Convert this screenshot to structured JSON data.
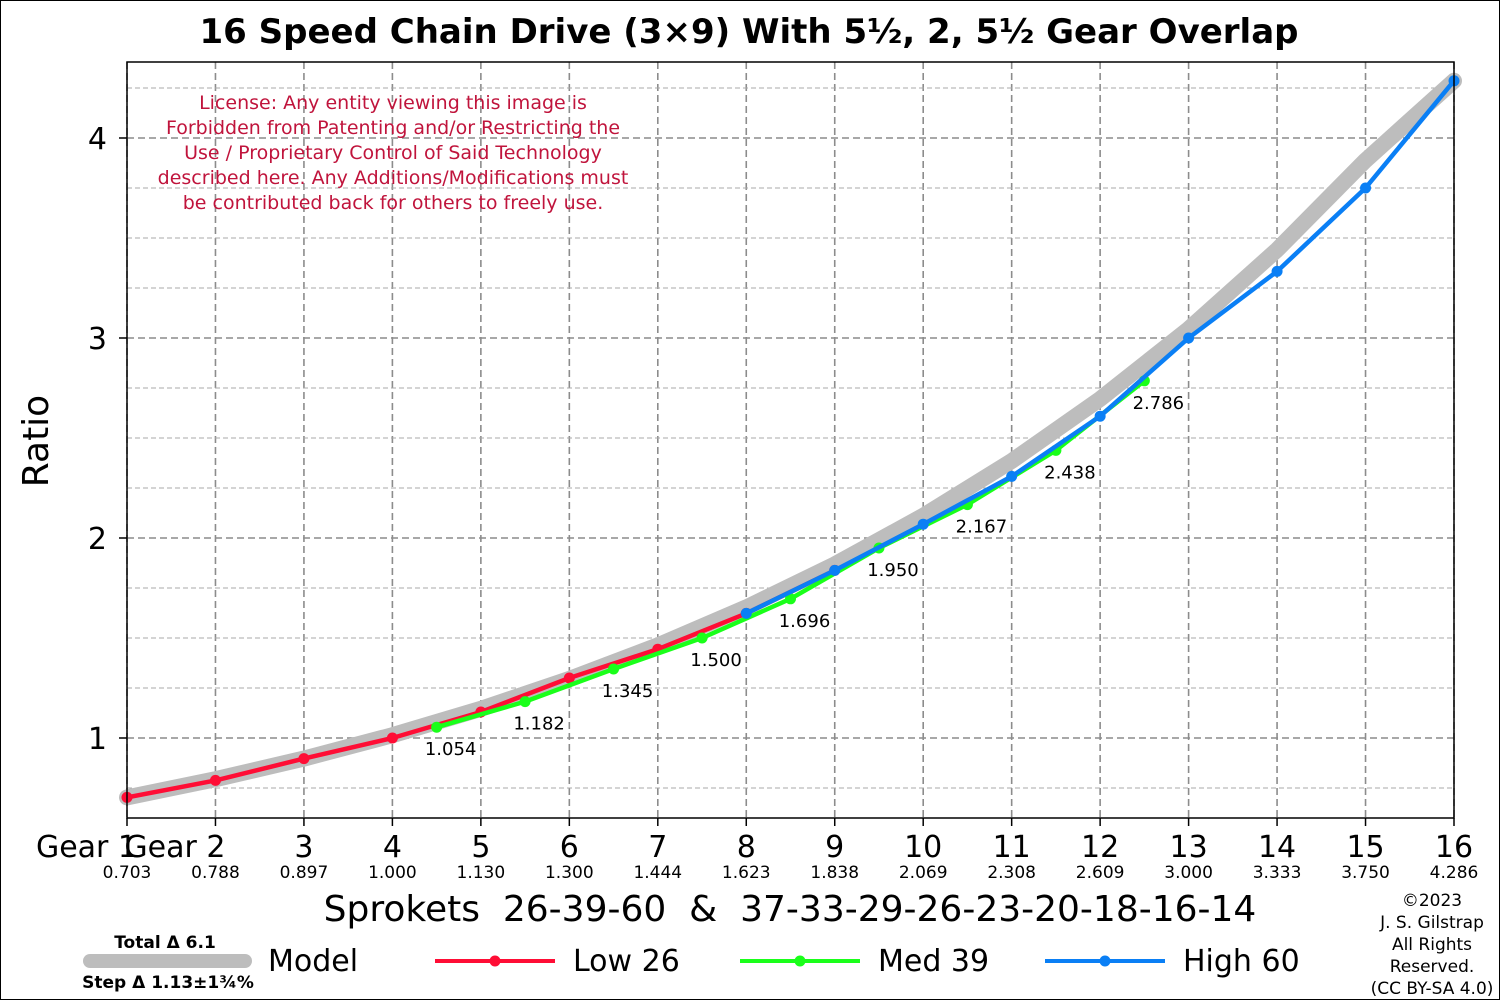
{
  "license_lines": [
    "License: Any entity viewing this image is",
    "Forbidden from Patenting and/or Restricting the",
    "Use / Proprietary Control of Said Technology",
    "described here. Any Additions/Modifications must",
    "be contributed back for others to freely use."
  ],
  "copyright_lines": [
    "©2023",
    "J. S. Gilstrap",
    "All Rights",
    "Reserved.",
    "(CC BY-SA 4.0)"
  ],
  "model_notes": {
    "total": "Total Δ 6.1",
    "step": "Step Δ 1.13±1¾%"
  },
  "colors": {
    "model": "#bdbdbd",
    "low": "#ff0d35",
    "med": "#1aff1a",
    "high": "#0a7ff5",
    "license": "#c0143c",
    "grid": "#8c8c8c"
  },
  "chart_data": {
    "type": "line",
    "title": "16 Speed Chain Drive (3×9) With 5½, 2, 5½ Gear Overlap",
    "xlabel": "Sprokets  26-39-60  &  37-33-29-26-23-20-18-16-14",
    "ylabel": "Ratio",
    "xlim": [
      1,
      16
    ],
    "ylim": [
      0.6,
      4.38
    ],
    "x_ticks": [
      1,
      2,
      3,
      4,
      5,
      6,
      7,
      8,
      9,
      10,
      11,
      12,
      13,
      14,
      15,
      16
    ],
    "x_tick_labels": [
      "Gear 1",
      "Gear 2",
      "3",
      "4",
      "5",
      "6",
      "7",
      "8",
      "9",
      "10",
      "11",
      "12",
      "13",
      "14",
      "15",
      "16"
    ],
    "x_sub_labels": [
      "0.703",
      "0.788",
      "0.897",
      "1.000",
      "1.130",
      "1.300",
      "1.444",
      "1.623",
      "1.838",
      "2.069",
      "2.308",
      "2.609",
      "3.000",
      "3.333",
      "3.750",
      "4.286"
    ],
    "y_ticks": [
      1,
      2,
      3,
      4
    ],
    "y_tick_labels": [
      "1",
      "2",
      "3",
      "4"
    ],
    "y_minor_gridlines": [
      0.75,
      1.25,
      1.5,
      1.75,
      2.25,
      2.5,
      2.75,
      3.25,
      3.5,
      3.75,
      4.25
    ],
    "grid": true,
    "legend_position": "bottom",
    "series": [
      {
        "name": "Model",
        "style": "band",
        "x": [
          1,
          2,
          3,
          4,
          5,
          6,
          7,
          8,
          9,
          10,
          11,
          12,
          13,
          14,
          15,
          16
        ],
        "y": [
          0.703,
          0.794,
          0.897,
          1.014,
          1.146,
          1.295,
          1.463,
          1.653,
          1.868,
          2.111,
          2.385,
          2.695,
          3.045,
          3.441,
          3.888,
          4.286
        ]
      },
      {
        "name": "Low 26",
        "x": [
          1,
          2,
          3,
          4,
          5,
          6,
          7,
          8,
          9
        ],
        "y": [
          0.703,
          0.788,
          0.897,
          1.0,
          1.13,
          1.3,
          1.444,
          1.623,
          1.838
        ]
      },
      {
        "name": "Med 39",
        "x": [
          4.5,
          5.5,
          6.5,
          7.5,
          8.5,
          9.5,
          10.5,
          11.5,
          12.5
        ],
        "y": [
          1.054,
          1.182,
          1.345,
          1.5,
          1.696,
          1.95,
          2.167,
          2.438,
          2.786
        ]
      },
      {
        "name": "High 60",
        "x": [
          8,
          9,
          10,
          11,
          12,
          13,
          14,
          15,
          16
        ],
        "y": [
          1.623,
          1.838,
          2.069,
          2.308,
          2.609,
          3.0,
          3.333,
          3.75,
          4.286
        ]
      }
    ],
    "data_labels": [
      {
        "x": 4.5,
        "y": 1.054,
        "text": "1.054"
      },
      {
        "x": 5.5,
        "y": 1.182,
        "text": "1.182"
      },
      {
        "x": 6.5,
        "y": 1.345,
        "text": "1.345"
      },
      {
        "x": 7.5,
        "y": 1.5,
        "text": "1.500"
      },
      {
        "x": 8.5,
        "y": 1.696,
        "text": "1.696"
      },
      {
        "x": 9.5,
        "y": 1.95,
        "text": "1.950"
      },
      {
        "x": 10.5,
        "y": 2.167,
        "text": "2.167"
      },
      {
        "x": 11.5,
        "y": 2.438,
        "text": "2.438"
      },
      {
        "x": 12.5,
        "y": 2.786,
        "text": "2.786"
      }
    ]
  }
}
